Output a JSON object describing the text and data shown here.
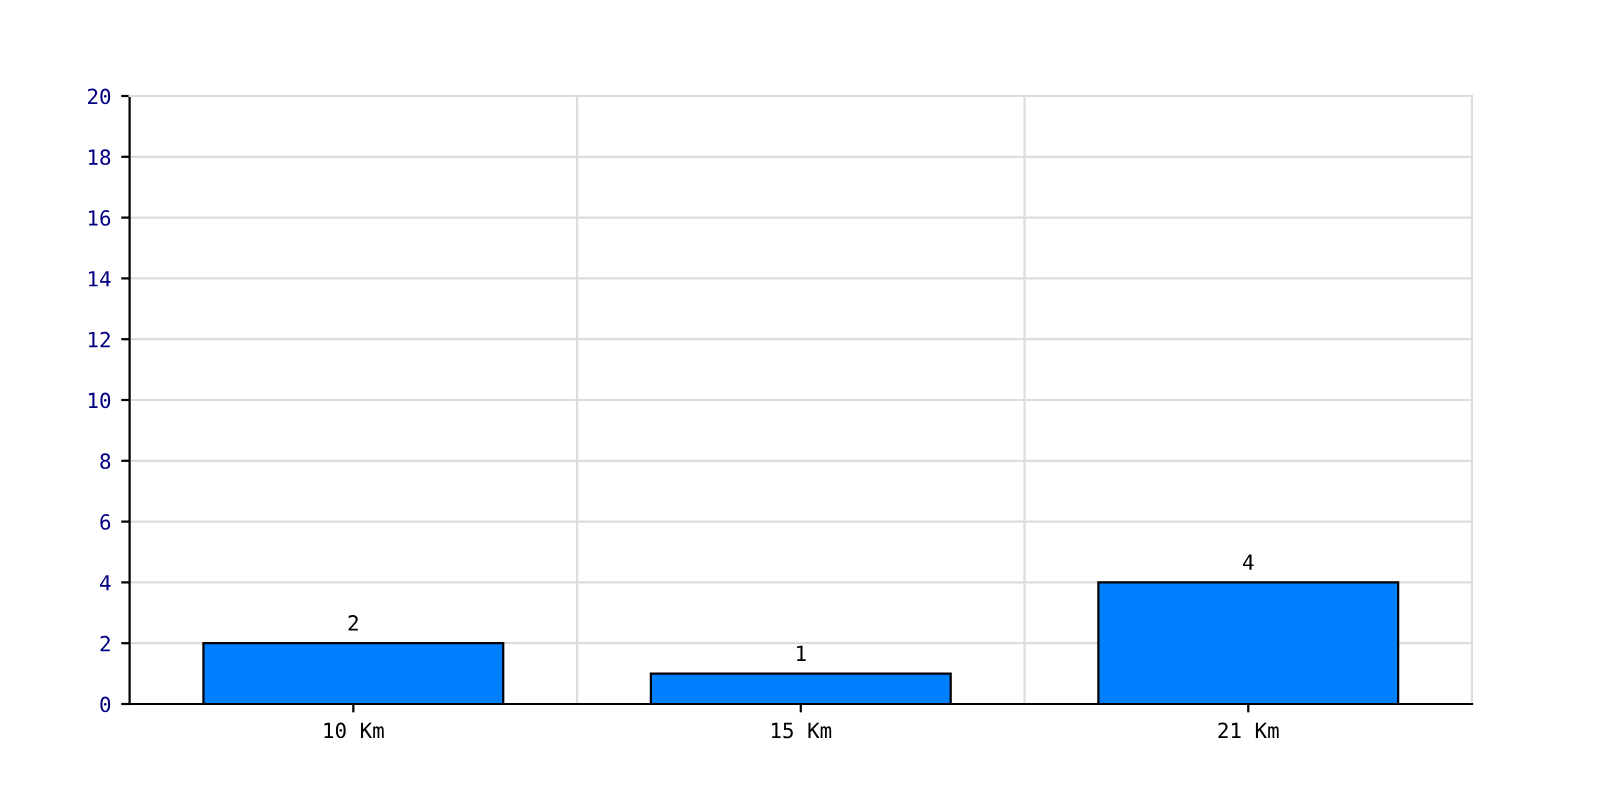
{
  "chart_data": {
    "type": "bar",
    "categories": [
      "10 Km",
      "15 Km",
      "21 Km"
    ],
    "values": [
      2,
      1,
      4
    ],
    "color": "#0080ff",
    "ylim": [
      0,
      20
    ],
    "yticks": [
      0,
      2,
      4,
      6,
      8,
      10,
      12,
      14,
      16,
      18,
      20
    ],
    "grid": true,
    "data_labels": true
  }
}
